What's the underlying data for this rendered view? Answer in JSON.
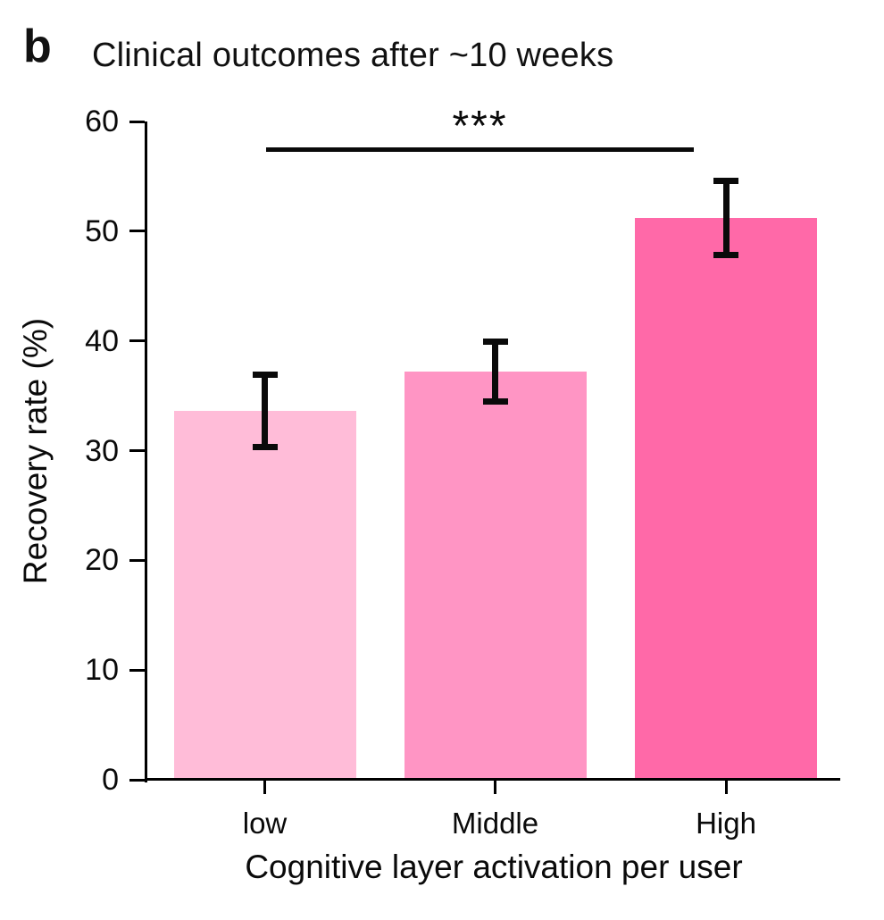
{
  "panel_label": "b",
  "title": "Clinical outcomes after ~10 weeks",
  "chart_data": {
    "type": "bar",
    "title": "Clinical outcomes after ~10 weeks",
    "categories": [
      "low",
      "Middle",
      "High"
    ],
    "values": [
      33.6,
      37.2,
      51.2
    ],
    "error_bars": [
      3.3,
      2.7,
      3.4
    ],
    "bar_colors": [
      "#FFBCD8",
      "#FF95C4",
      "#FF69A8"
    ],
    "xlabel": "Cognitive layer activation per user",
    "ylabel": "Recovery rate (%)",
    "ylim": [
      0,
      60
    ],
    "yticks": [
      0,
      10,
      20,
      30,
      40,
      50,
      60
    ],
    "grid": false,
    "legend": null,
    "annotation": {
      "text": "***",
      "between": [
        "low",
        "High"
      ]
    }
  },
  "colors": {
    "background": "#ffffff",
    "axis": "#000000",
    "text": "#0a0a0a",
    "bar_low": "#FFBCD8",
    "bar_middle": "#FF95C4",
    "bar_high": "#FF69A8"
  }
}
